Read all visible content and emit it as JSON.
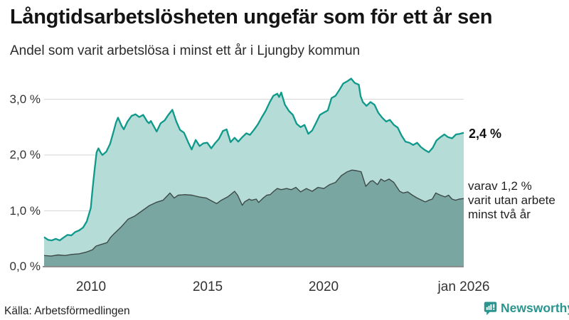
{
  "header": {
    "title": "Långtidsarbetslösheten ungefär som för ett år sen",
    "subtitle": "Andel som varit arbetslösa i minst ett år i Ljungby kommun"
  },
  "annotations": {
    "latest_value": "2,4 %",
    "secondary_line1": "varav 1,2 %",
    "secondary_line2": "varit utan arbete",
    "secondary_line3": "minst två år"
  },
  "axes": {
    "y_tick_labels": [
      "3,0 %",
      "2,0 %",
      "1,0 %",
      "0,0 %"
    ],
    "x_tick_labels": [
      "2010",
      "2015",
      "2020",
      "jan 2026"
    ]
  },
  "footer": {
    "source": "Källa: Arbetsförmedlingen",
    "brand": "Newsworthy"
  },
  "colors": {
    "accent_line": "#0f998b",
    "accent_fill": "#b6dcd7",
    "dark_line": "#3d4a48",
    "dark_fill": "#79a6a1",
    "gridline": "#d6d6d6",
    "baseline": "#8c8c8c",
    "brand_teal": "#2a958e"
  },
  "chart_data": {
    "type": "area",
    "title": "Långtidsarbetslösheten ungefär som för ett år sen",
    "subtitle": "Andel som varit arbetslösa i minst ett år i Ljungby kommun",
    "unit": "%",
    "x_range": [
      2008,
      2026.0
    ],
    "ylim": [
      0,
      3.5
    ],
    "y_ticks": [
      0,
      1,
      2,
      3
    ],
    "x_ticks": [
      {
        "year": 2010,
        "label": "2010"
      },
      {
        "year": 2015,
        "label": "2015"
      },
      {
        "year": 2020,
        "label": "2020"
      },
      {
        "year": 2026,
        "label": "jan 2026"
      }
    ],
    "grid": "horizontal",
    "legend_position": "none",
    "series": [
      {
        "name": "Arbetslösa minst ett år",
        "end_value": 2.4,
        "end_label": "2,4 %",
        "points": [
          [
            2008.0,
            0.53
          ],
          [
            2008.17,
            0.48
          ],
          [
            2008.33,
            0.47
          ],
          [
            2008.5,
            0.5
          ],
          [
            2008.67,
            0.47
          ],
          [
            2008.83,
            0.52
          ],
          [
            2009.0,
            0.57
          ],
          [
            2009.17,
            0.56
          ],
          [
            2009.33,
            0.62
          ],
          [
            2009.5,
            0.65
          ],
          [
            2009.67,
            0.7
          ],
          [
            2009.83,
            0.81
          ],
          [
            2010.0,
            1.05
          ],
          [
            2010.08,
            1.4
          ],
          [
            2010.17,
            1.75
          ],
          [
            2010.25,
            2.05
          ],
          [
            2010.33,
            2.12
          ],
          [
            2010.42,
            2.05
          ],
          [
            2010.5,
            2.0
          ],
          [
            2010.67,
            2.06
          ],
          [
            2010.83,
            2.2
          ],
          [
            2011.0,
            2.45
          ],
          [
            2011.08,
            2.58
          ],
          [
            2011.17,
            2.67
          ],
          [
            2011.33,
            2.52
          ],
          [
            2011.42,
            2.46
          ],
          [
            2011.58,
            2.6
          ],
          [
            2011.75,
            2.7
          ],
          [
            2011.92,
            2.73
          ],
          [
            2012.08,
            2.68
          ],
          [
            2012.25,
            2.72
          ],
          [
            2012.42,
            2.6
          ],
          [
            2012.5,
            2.57
          ],
          [
            2012.58,
            2.61
          ],
          [
            2012.75,
            2.48
          ],
          [
            2012.83,
            2.42
          ],
          [
            2013.0,
            2.57
          ],
          [
            2013.17,
            2.62
          ],
          [
            2013.33,
            2.72
          ],
          [
            2013.5,
            2.81
          ],
          [
            2013.67,
            2.6
          ],
          [
            2013.83,
            2.45
          ],
          [
            2014.0,
            2.4
          ],
          [
            2014.17,
            2.24
          ],
          [
            2014.33,
            2.1
          ],
          [
            2014.5,
            2.27
          ],
          [
            2014.67,
            2.16
          ],
          [
            2014.83,
            2.21
          ],
          [
            2015.0,
            2.22
          ],
          [
            2015.17,
            2.12
          ],
          [
            2015.33,
            2.21
          ],
          [
            2015.5,
            2.29
          ],
          [
            2015.67,
            2.43
          ],
          [
            2015.83,
            2.46
          ],
          [
            2016.0,
            2.23
          ],
          [
            2016.17,
            2.31
          ],
          [
            2016.33,
            2.24
          ],
          [
            2016.5,
            2.32
          ],
          [
            2016.67,
            2.39
          ],
          [
            2016.83,
            2.36
          ],
          [
            2017.0,
            2.45
          ],
          [
            2017.17,
            2.55
          ],
          [
            2017.33,
            2.67
          ],
          [
            2017.5,
            2.79
          ],
          [
            2017.67,
            2.94
          ],
          [
            2017.83,
            3.06
          ],
          [
            2018.0,
            3.1
          ],
          [
            2018.08,
            3.04
          ],
          [
            2018.17,
            3.12
          ],
          [
            2018.33,
            2.9
          ],
          [
            2018.5,
            2.79
          ],
          [
            2018.67,
            2.72
          ],
          [
            2018.83,
            2.56
          ],
          [
            2019.0,
            2.5
          ],
          [
            2019.17,
            2.54
          ],
          [
            2019.33,
            2.38
          ],
          [
            2019.5,
            2.44
          ],
          [
            2019.67,
            2.58
          ],
          [
            2019.83,
            2.72
          ],
          [
            2020.0,
            2.76
          ],
          [
            2020.17,
            2.8
          ],
          [
            2020.33,
            3.02
          ],
          [
            2020.5,
            3.06
          ],
          [
            2020.67,
            3.17
          ],
          [
            2020.83,
            3.28
          ],
          [
            2021.0,
            3.32
          ],
          [
            2021.17,
            3.37
          ],
          [
            2021.33,
            3.29
          ],
          [
            2021.5,
            3.26
          ],
          [
            2021.58,
            3.05
          ],
          [
            2021.67,
            2.95
          ],
          [
            2021.83,
            2.88
          ],
          [
            2022.0,
            2.95
          ],
          [
            2022.17,
            2.9
          ],
          [
            2022.33,
            2.76
          ],
          [
            2022.5,
            2.67
          ],
          [
            2022.67,
            2.6
          ],
          [
            2022.83,
            2.63
          ],
          [
            2023.0,
            2.54
          ],
          [
            2023.17,
            2.49
          ],
          [
            2023.33,
            2.35
          ],
          [
            2023.5,
            2.24
          ],
          [
            2023.67,
            2.22
          ],
          [
            2023.83,
            2.18
          ],
          [
            2024.0,
            2.22
          ],
          [
            2024.17,
            2.14
          ],
          [
            2024.33,
            2.09
          ],
          [
            2024.5,
            2.05
          ],
          [
            2024.67,
            2.13
          ],
          [
            2024.83,
            2.26
          ],
          [
            2025.0,
            2.32
          ],
          [
            2025.17,
            2.37
          ],
          [
            2025.33,
            2.32
          ],
          [
            2025.5,
            2.3
          ],
          [
            2025.67,
            2.37
          ],
          [
            2025.83,
            2.38
          ],
          [
            2026.0,
            2.4
          ]
        ]
      },
      {
        "name": "Arbetslösa minst två år",
        "end_value": 1.2,
        "end_label": "varav 1,2 % varit utan arbete minst två år",
        "points": [
          [
            2008.0,
            0.2
          ],
          [
            2008.3,
            0.19
          ],
          [
            2008.6,
            0.21
          ],
          [
            2008.9,
            0.2
          ],
          [
            2009.2,
            0.22
          ],
          [
            2009.5,
            0.23
          ],
          [
            2009.8,
            0.26
          ],
          [
            2010.07,
            0.3
          ],
          [
            2010.23,
            0.37
          ],
          [
            2010.38,
            0.39
          ],
          [
            2010.7,
            0.43
          ],
          [
            2010.84,
            0.52
          ],
          [
            2011.0,
            0.59
          ],
          [
            2011.3,
            0.71
          ],
          [
            2011.45,
            0.78
          ],
          [
            2011.6,
            0.85
          ],
          [
            2011.9,
            0.91
          ],
          [
            2012.2,
            1.0
          ],
          [
            2012.5,
            1.09
          ],
          [
            2012.8,
            1.15
          ],
          [
            2013.1,
            1.19
          ],
          [
            2013.4,
            1.32
          ],
          [
            2013.58,
            1.23
          ],
          [
            2013.75,
            1.28
          ],
          [
            2014.05,
            1.29
          ],
          [
            2014.35,
            1.28
          ],
          [
            2014.65,
            1.25
          ],
          [
            2014.95,
            1.23
          ],
          [
            2015.26,
            1.16
          ],
          [
            2015.4,
            1.13
          ],
          [
            2015.6,
            1.19
          ],
          [
            2015.87,
            1.25
          ],
          [
            2016.0,
            1.29
          ],
          [
            2016.17,
            1.35
          ],
          [
            2016.3,
            1.28
          ],
          [
            2016.5,
            1.1
          ],
          [
            2016.6,
            1.16
          ],
          [
            2016.8,
            1.21
          ],
          [
            2016.9,
            1.19
          ],
          [
            2017.1,
            1.21
          ],
          [
            2017.2,
            1.15
          ],
          [
            2017.4,
            1.23
          ],
          [
            2017.55,
            1.28
          ],
          [
            2017.7,
            1.29
          ],
          [
            2017.85,
            1.35
          ],
          [
            2018.0,
            1.4
          ],
          [
            2018.17,
            1.38
          ],
          [
            2018.4,
            1.4
          ],
          [
            2018.6,
            1.38
          ],
          [
            2018.8,
            1.42
          ],
          [
            2019.0,
            1.34
          ],
          [
            2019.25,
            1.4
          ],
          [
            2019.5,
            1.35
          ],
          [
            2019.75,
            1.42
          ],
          [
            2020.0,
            1.4
          ],
          [
            2020.25,
            1.47
          ],
          [
            2020.5,
            1.51
          ],
          [
            2020.75,
            1.63
          ],
          [
            2021.0,
            1.7
          ],
          [
            2021.2,
            1.73
          ],
          [
            2021.4,
            1.72
          ],
          [
            2021.6,
            1.7
          ],
          [
            2021.8,
            1.44
          ],
          [
            2022.0,
            1.53
          ],
          [
            2022.1,
            1.54
          ],
          [
            2022.3,
            1.47
          ],
          [
            2022.45,
            1.57
          ],
          [
            2022.6,
            1.53
          ],
          [
            2022.8,
            1.57
          ],
          [
            2023.0,
            1.51
          ],
          [
            2023.25,
            1.35
          ],
          [
            2023.4,
            1.32
          ],
          [
            2023.6,
            1.34
          ],
          [
            2023.8,
            1.28
          ],
          [
            2024.0,
            1.23
          ],
          [
            2024.2,
            1.19
          ],
          [
            2024.35,
            1.16
          ],
          [
            2024.5,
            1.19
          ],
          [
            2024.65,
            1.21
          ],
          [
            2024.8,
            1.32
          ],
          [
            2025.0,
            1.28
          ],
          [
            2025.2,
            1.25
          ],
          [
            2025.35,
            1.28
          ],
          [
            2025.5,
            1.21
          ],
          [
            2025.65,
            1.19
          ],
          [
            2025.8,
            1.21
          ],
          [
            2026.0,
            1.22
          ]
        ]
      }
    ]
  }
}
